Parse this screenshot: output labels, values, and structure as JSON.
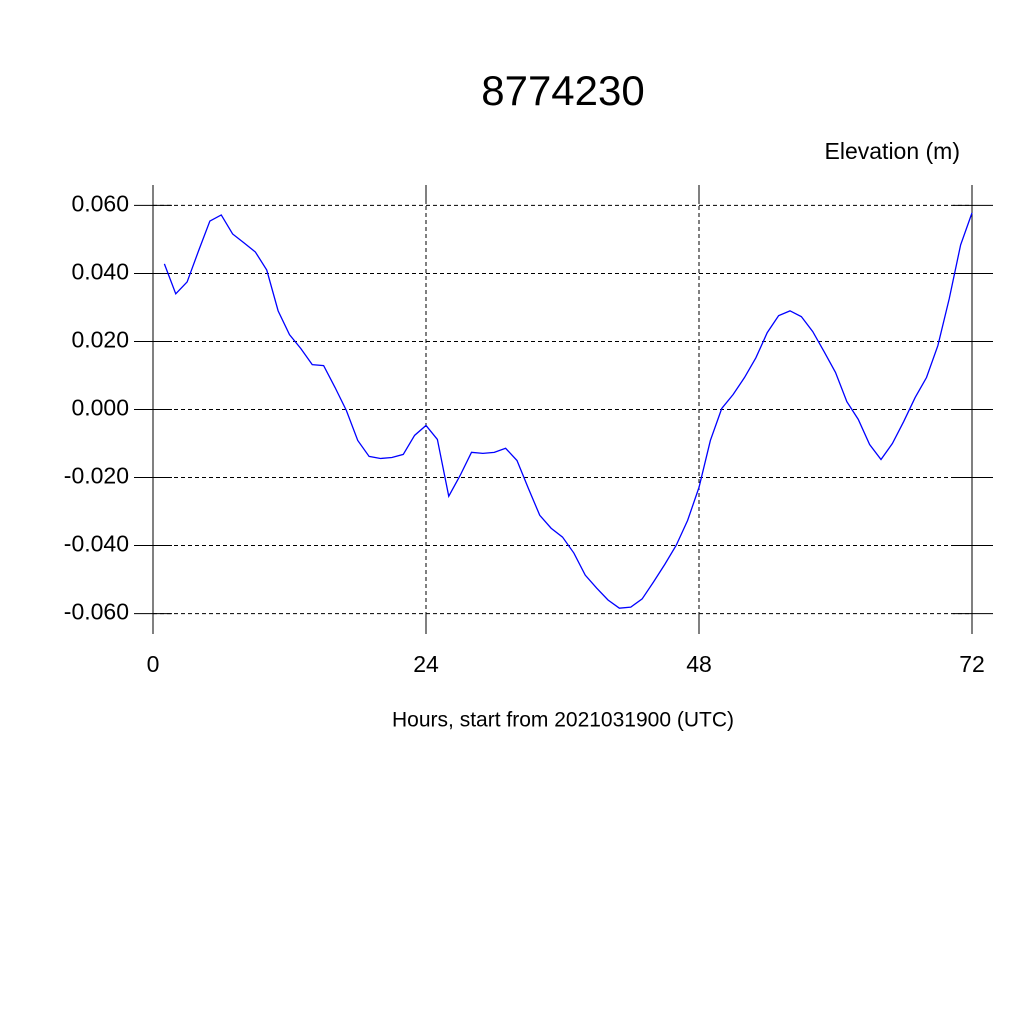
{
  "chart_data": {
    "type": "line",
    "title": "8774230",
    "subtitle": "Elevation (m)",
    "x_label": "Hours, start from 2021031900 (UTC)",
    "x": [
      1,
      2,
      3,
      4,
      5,
      6,
      7,
      8,
      9,
      10,
      11,
      12,
      13,
      14,
      15,
      16,
      17,
      18,
      19,
      20,
      21,
      22,
      23,
      24,
      25,
      26,
      27,
      28,
      29,
      30,
      31,
      32,
      33,
      34,
      35,
      36,
      37,
      38,
      39,
      40,
      41,
      42,
      43,
      44,
      45,
      46,
      47,
      48,
      49,
      50,
      51,
      52,
      53,
      54,
      55,
      56,
      57,
      58,
      59,
      60,
      61,
      62,
      63,
      64,
      65,
      66,
      67,
      68,
      69,
      70,
      71,
      72
    ],
    "series": [
      {
        "name": "Elevation",
        "color": "#0000ff",
        "values": [
          0.0428,
          0.034,
          0.0375,
          0.0466,
          0.0554,
          0.0572,
          0.0516,
          0.049,
          0.0463,
          0.041,
          0.029,
          0.022,
          0.0179,
          0.0132,
          0.0129,
          0.0065,
          -0.0003,
          -0.0091,
          -0.0138,
          -0.0144,
          -0.0141,
          -0.0132,
          -0.0076,
          -0.0047,
          -0.0088,
          -0.0255,
          -0.0194,
          -0.0126,
          -0.0129,
          -0.0126,
          -0.0114,
          -0.015,
          -0.0232,
          -0.0311,
          -0.0349,
          -0.0375,
          -0.0422,
          -0.0487,
          -0.0525,
          -0.056,
          -0.0584,
          -0.0581,
          -0.0557,
          -0.0507,
          -0.0455,
          -0.0399,
          -0.0326,
          -0.0229,
          -0.0091,
          0.0003,
          0.0044,
          0.0094,
          0.0152,
          0.0226,
          0.0276,
          0.029,
          0.0273,
          0.0229,
          0.017,
          0.0109,
          0.0023,
          -0.0029,
          -0.0103,
          -0.0147,
          -0.01,
          -0.0035,
          0.0035,
          0.0094,
          0.0188,
          0.0326,
          0.0484,
          0.0578
        ]
      }
    ],
    "xlim": [
      0,
      72
    ],
    "xticks": [
      0,
      24,
      48,
      72
    ],
    "ylim": [
      -0.066,
      0.066
    ],
    "yticks": [
      {
        "value": -0.06,
        "label": "-0.060"
      },
      {
        "value": -0.04,
        "label": "-0.040"
      },
      {
        "value": -0.02,
        "label": "-0.020"
      },
      {
        "value": 0,
        "label": "0.000"
      },
      {
        "value": 0.02,
        "label": "0.020"
      },
      {
        "value": 0.04,
        "label": "0.040"
      },
      {
        "value": 0.06,
        "label": "0.060"
      }
    ],
    "grid": true
  }
}
